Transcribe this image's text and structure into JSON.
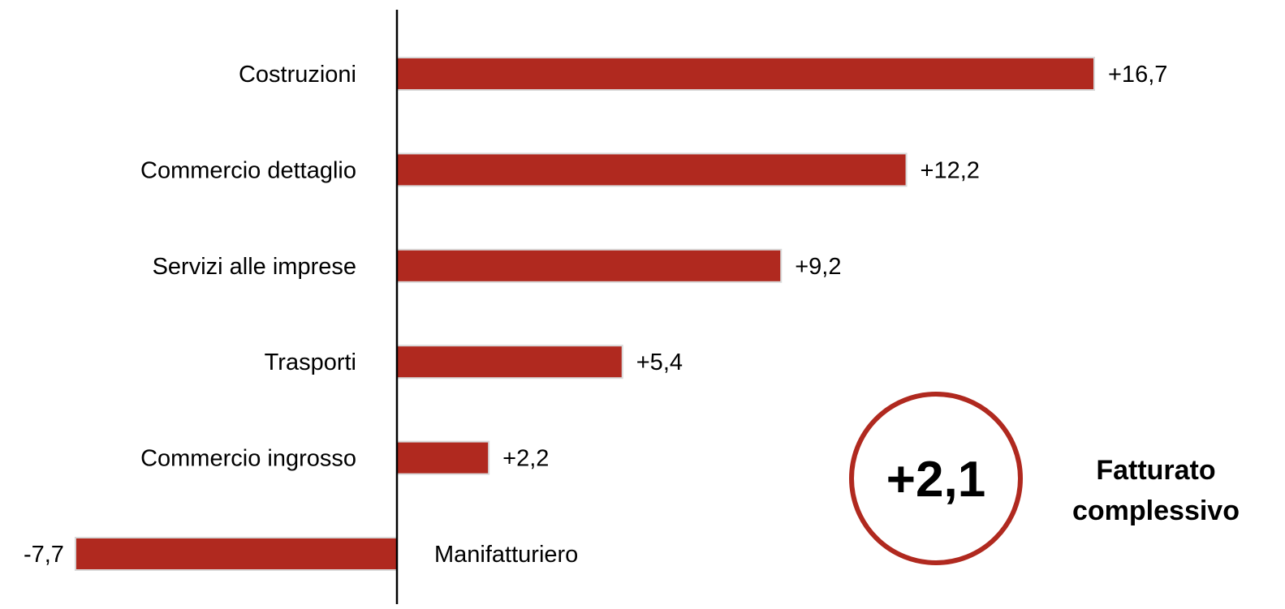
{
  "chart_data": {
    "type": "bar",
    "orientation": "horizontal",
    "categories": [
      "Costruzioni",
      "Commercio dettaglio",
      "Servizi alle imprese",
      "Trasporti",
      "Commercio ingrosso",
      "Manifatturiero"
    ],
    "values": [
      16.7,
      12.2,
      9.2,
      5.4,
      2.2,
      -7.7
    ],
    "value_labels": [
      "+16,7",
      "+12,2",
      "+9,2",
      "+5,4",
      "+2,2",
      "-7,7"
    ],
    "xlim": [
      -7.7,
      16.7
    ],
    "grid": false,
    "bar_color": "#b0291f"
  },
  "summary": {
    "value": "+2,1",
    "caption_line1": "Fatturato",
    "caption_line2": "complessivo",
    "ring_color": "#b0291f"
  }
}
